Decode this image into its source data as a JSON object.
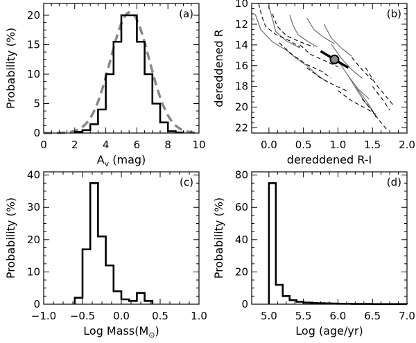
{
  "panels": [
    {
      "id": "a",
      "label": "(a)",
      "xlabel": "A_v (mag)",
      "xlabel_main": "A",
      "xlabel_sub": "v",
      "xlabel_rest": " (mag)",
      "ylabel": "Probability (%)",
      "xlim": [
        0,
        10
      ],
      "ylim": [
        0,
        22
      ],
      "xticks": [
        0,
        2,
        4,
        6,
        8,
        10
      ],
      "xticklabels": [
        "0",
        "2",
        "4",
        "6",
        "8",
        "10"
      ],
      "yticks": [
        0,
        5,
        10,
        15,
        20
      ],
      "yticklabels": [
        "0",
        "5",
        "10",
        "15",
        "20"
      ]
    },
    {
      "id": "b",
      "label": "(b)",
      "xlabel": "dereddened R-I",
      "ylabel": "dereddened R",
      "xlim": [
        -0.25,
        2.0
      ],
      "ylim": [
        22.5,
        10
      ],
      "xticks": [
        0.0,
        0.5,
        1.0,
        1.5,
        2.0
      ],
      "xticklabels": [
        "0.0",
        "0.5",
        "1.0",
        "1.5",
        "2.0"
      ],
      "yticks": [
        10,
        12,
        14,
        16,
        18,
        20,
        22
      ],
      "yticklabels": [
        "10",
        "12",
        "14",
        "16",
        "18",
        "20",
        "22"
      ]
    },
    {
      "id": "c",
      "label": "(c)",
      "xlabel": "Log Mass(M_sun)",
      "xlabel_main": "Log Mass(M",
      "xlabel_sub": "⊙",
      "xlabel_rest": ")",
      "ylabel": "Probability (%)",
      "xlim": [
        -1.0,
        1.0
      ],
      "ylim": [
        0,
        41
      ],
      "xticks": [
        -1.0,
        -0.5,
        0.0,
        0.5,
        1.0
      ],
      "xticklabels": [
        "−1.0",
        "−0.5",
        "0.0",
        "0.5",
        "1.0"
      ],
      "yticks": [
        0,
        10,
        20,
        30,
        40
      ],
      "yticklabels": [
        "0",
        "10",
        "20",
        "30",
        "40"
      ]
    },
    {
      "id": "d",
      "label": "(d)",
      "xlabel": "Log (age/yr)",
      "ylabel": "Probability (%)",
      "xlim": [
        4.75,
        7.0
      ],
      "ylim": [
        0,
        82
      ],
      "xticks": [
        5.0,
        5.5,
        6.0,
        6.5,
        7.0
      ],
      "xticklabels": [
        "5.0",
        "5.5",
        "6.0",
        "6.5",
        "7.0"
      ],
      "yticks": [
        0,
        20,
        40,
        60,
        80
      ],
      "yticklabels": [
        "0",
        "20",
        "40",
        "60",
        "80"
      ]
    }
  ],
  "chart_data": [
    {
      "type": "histogram",
      "panel": "a",
      "series": [
        {
          "style": "step",
          "x": [
            2.25,
            2.75,
            3.25,
            3.75,
            4.25,
            4.75,
            5.25,
            5.75,
            6.25,
            6.75,
            7.25,
            7.75,
            8.25,
            8.75
          ],
          "y": [
            0.2,
            0.5,
            1.5,
            4.0,
            10.0,
            15.5,
            20.0,
            20.0,
            15.5,
            10.0,
            5.0,
            1.8,
            0.3,
            0.1
          ]
        },
        {
          "style": "dashed-gaussian",
          "mean": 5.55,
          "sigma": 1.25,
          "peak": 20.5
        }
      ]
    },
    {
      "type": "line",
      "panel": "b",
      "solid_tracks": [
        [
          [
            -0.2,
            11.0
          ],
          [
            -0.12,
            12.5
          ],
          [
            0.05,
            13.7
          ],
          [
            0.25,
            14.5
          ],
          [
            0.4,
            15.3
          ],
          [
            0.55,
            16.0
          ],
          [
            0.7,
            16.9
          ],
          [
            0.85,
            17.6
          ]
        ],
        [
          [
            0.0,
            10.3
          ],
          [
            0.05,
            11.5
          ],
          [
            0.1,
            12.7
          ],
          [
            0.25,
            13.6
          ],
          [
            0.45,
            14.3
          ]
        ],
        [
          [
            0.3,
            11.1
          ],
          [
            0.35,
            12.1
          ],
          [
            0.42,
            13.0
          ],
          [
            0.55,
            13.6
          ],
          [
            0.7,
            14.2
          ]
        ],
        [
          [
            0.55,
            11.4
          ],
          [
            0.65,
            12.5
          ],
          [
            0.78,
            13.2
          ],
          [
            0.95,
            13.9
          ]
        ],
        [
          [
            0.8,
            12.0
          ],
          [
            0.9,
            13.3
          ],
          [
            1.05,
            14.3
          ],
          [
            1.2,
            15.1
          ]
        ],
        [
          [
            0.9,
            13.9
          ],
          [
            1.05,
            15.3
          ],
          [
            1.2,
            16.4
          ],
          [
            1.35,
            17.2
          ]
        ],
        [
          [
            1.0,
            15.5
          ],
          [
            1.15,
            17.0
          ],
          [
            1.3,
            18.3
          ],
          [
            1.45,
            19.2
          ]
        ],
        [
          [
            1.15,
            17.0
          ],
          [
            1.3,
            18.6
          ],
          [
            1.4,
            19.6
          ],
          [
            1.5,
            20.3
          ]
        ],
        [
          [
            1.25,
            18.0
          ],
          [
            1.4,
            19.3
          ],
          [
            1.5,
            20.3
          ],
          [
            1.55,
            21.0
          ]
        ]
      ],
      "dashed_tracks": [
        [
          [
            -0.15,
            10.0
          ],
          [
            -0.1,
            11.3
          ],
          [
            -0.05,
            12.2
          ],
          [
            0.1,
            13.0
          ],
          [
            0.3,
            13.6
          ],
          [
            0.45,
            14.2
          ]
        ],
        [
          [
            0.05,
            11.0
          ],
          [
            0.12,
            12.2
          ],
          [
            0.25,
            13.1
          ],
          [
            0.45,
            13.7
          ],
          [
            0.65,
            14.2
          ]
        ],
        [
          [
            0.15,
            13.8
          ],
          [
            0.35,
            15.0
          ],
          [
            0.55,
            15.9
          ],
          [
            0.75,
            16.5
          ],
          [
            0.9,
            17.2
          ]
        ],
        [
          [
            0.45,
            14.0
          ],
          [
            0.6,
            14.9
          ],
          [
            0.8,
            15.5
          ],
          [
            1.0,
            16.1
          ]
        ],
        [
          [
            0.55,
            16.2
          ],
          [
            0.75,
            17.2
          ],
          [
            0.95,
            17.9
          ],
          [
            1.15,
            18.5
          ]
        ],
        [
          [
            1.2,
            15.2
          ],
          [
            1.35,
            16.4
          ],
          [
            1.5,
            17.4
          ]
        ],
        [
          [
            1.0,
            18.4
          ],
          [
            1.2,
            19.4
          ],
          [
            1.4,
            20.1
          ],
          [
            1.55,
            20.7
          ]
        ],
        [
          [
            1.4,
            16.2
          ],
          [
            1.55,
            17.8
          ],
          [
            1.7,
            19.0
          ],
          [
            1.8,
            19.8
          ]
        ],
        [
          [
            1.35,
            19.2
          ],
          [
            1.5,
            20.4
          ],
          [
            1.6,
            21.3
          ],
          [
            1.7,
            22.1
          ]
        ],
        [
          [
            1.5,
            18.0
          ],
          [
            1.65,
            19.3
          ],
          [
            1.75,
            20.3
          ]
        ]
      ],
      "reddening_vector": {
        "from": [
          0.75,
          14.6
        ],
        "to": [
          1.15,
          16.2
        ]
      },
      "star": {
        "x": 0.95,
        "y": 15.4
      }
    },
    {
      "type": "histogram",
      "panel": "c",
      "series": [
        {
          "style": "step",
          "x": [
            -0.55,
            -0.45,
            -0.35,
            -0.25,
            -0.15,
            -0.05,
            0.05,
            0.15,
            0.25,
            0.35
          ],
          "y": [
            2.0,
            17.0,
            37.5,
            21.0,
            12.0,
            4.0,
            1.5,
            1.0,
            3.5,
            1.0
          ]
        }
      ]
    },
    {
      "type": "histogram",
      "panel": "d",
      "series": [
        {
          "style": "step",
          "x": [
            5.05,
            5.15,
            5.25,
            5.35,
            5.45,
            5.55,
            5.65,
            5.75,
            5.85,
            5.95,
            6.05,
            6.15,
            6.25,
            6.35,
            6.45,
            6.55,
            6.65,
            6.75,
            6.85,
            6.95
          ],
          "y": [
            75.0,
            12.0,
            5.0,
            2.5,
            1.5,
            1.0,
            0.8,
            0.6,
            0.5,
            0.4,
            0.3,
            0.3,
            0.2,
            0.2,
            0.2,
            0.1,
            0.1,
            0.1,
            0.1,
            0.1
          ]
        }
      ]
    }
  ]
}
